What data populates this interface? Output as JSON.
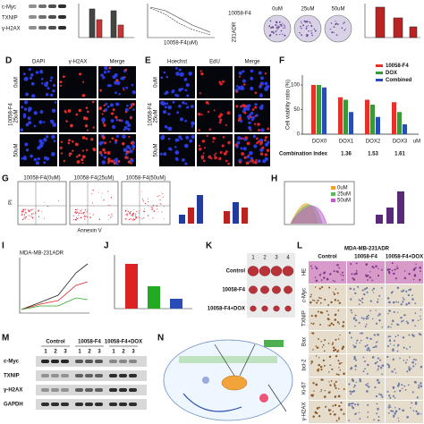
{
  "top_row": {
    "blot_rows": [
      "c-Myc",
      "TXNIP",
      "γ-H2AX"
    ],
    "c_x_label": "10058-F4(uM)",
    "plate_group": "10058-F4",
    "plate_columns": [
      "0uM",
      "25uM",
      "50uM"
    ],
    "plate_row": "231ADR"
  },
  "panel_d": {
    "label": "D",
    "columns": [
      "DAPI",
      "γ-H2AX",
      "Merge"
    ],
    "rows": [
      "0uM",
      "25uM",
      "50uM"
    ],
    "group": "10058-F4"
  },
  "panel_e": {
    "label": "E",
    "columns": [
      "Hoechst",
      "EdU",
      "Merge"
    ],
    "rows": [
      "0uM",
      "25uM",
      "50uM"
    ],
    "group": "10058-F4"
  },
  "panel_f": {
    "label": "F",
    "chart": {
      "type": "bar",
      "y_label": "Cell viability ratio (%)",
      "categories": [
        "DOX0",
        "DOX1",
        "DOX2",
        "DOX3"
      ],
      "unit": "uM",
      "series": [
        {
          "name": "10058-F4",
          "color": "#e8302a",
          "values": [
            100,
            75,
            70,
            65
          ]
        },
        {
          "name": "DOX",
          "color": "#3a9a3a",
          "values": [
            100,
            70,
            60,
            45
          ]
        },
        {
          "name": "Combined",
          "color": "#2a4db5",
          "values": [
            95,
            45,
            35,
            20
          ]
        }
      ],
      "ylim": [
        0,
        120
      ],
      "yticks": [
        0,
        50,
        100
      ],
      "ci_label": "Combination Index",
      "ci_values": [
        null,
        1.36,
        1.53,
        1.61
      ]
    }
  },
  "panel_g": {
    "label": "G",
    "plots": [
      "10058-F4(0uM)",
      "10058-F4(25uM)",
      "10058-F4(50uM)"
    ],
    "y_axis": "PI",
    "x_axis": "Annexin V"
  },
  "panel_h": {
    "label": "H",
    "legend": [
      "0uM",
      "25uM",
      "50uM"
    ]
  },
  "panel_i": {
    "label": "I",
    "title": "MDA-MB-231ADR"
  },
  "panel_j": {
    "label": "J"
  },
  "panel_k": {
    "label": "K",
    "lanes": [
      "1",
      "2",
      "3",
      "4"
    ],
    "rows": [
      "Control",
      "10058-F4",
      "10058-F4+DOX"
    ]
  },
  "panel_l": {
    "label": "L",
    "title": "MDA-MB-231ADR",
    "columns": [
      "Control",
      "10058-F4",
      "10058-F4+DOX"
    ],
    "rows": [
      "HE",
      "c-Myc",
      "TXNIP",
      "Bax",
      "bcl-2",
      "Ki-67",
      "γ-H2AX"
    ]
  },
  "panel_m": {
    "label": "M",
    "groups": [
      "Control",
      "10058-F4",
      "10058-F4+DOX"
    ],
    "lanes": [
      "1",
      "2",
      "3"
    ],
    "rows": [
      "c-Myc",
      "TXNIP",
      "γ-H2AX",
      "GAPDH"
    ]
  },
  "panel_n": {
    "label": "N"
  }
}
